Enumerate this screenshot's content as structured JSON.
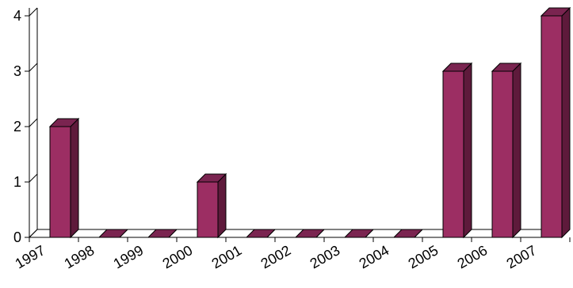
{
  "chart_data": {
    "type": "bar",
    "categories": [
      "1997",
      "1998",
      "1999",
      "2000",
      "2001",
      "2002",
      "2003",
      "2004",
      "2005",
      "2006",
      "2007"
    ],
    "values": [
      2,
      0,
      0,
      1,
      0,
      0,
      0,
      0,
      3,
      3,
      4
    ],
    "yticks": [
      "0",
      "1",
      "2",
      "3",
      "4"
    ],
    "ylim": [
      0,
      4
    ],
    "title": "",
    "xlabel": "",
    "ylabel": "",
    "grid": false,
    "style": "3d-bar",
    "colors": {
      "bar_front": "#9C2E63",
      "bar_side": "#5E1A3B",
      "bar_top": "#7A2450",
      "outline": "#000000"
    }
  }
}
